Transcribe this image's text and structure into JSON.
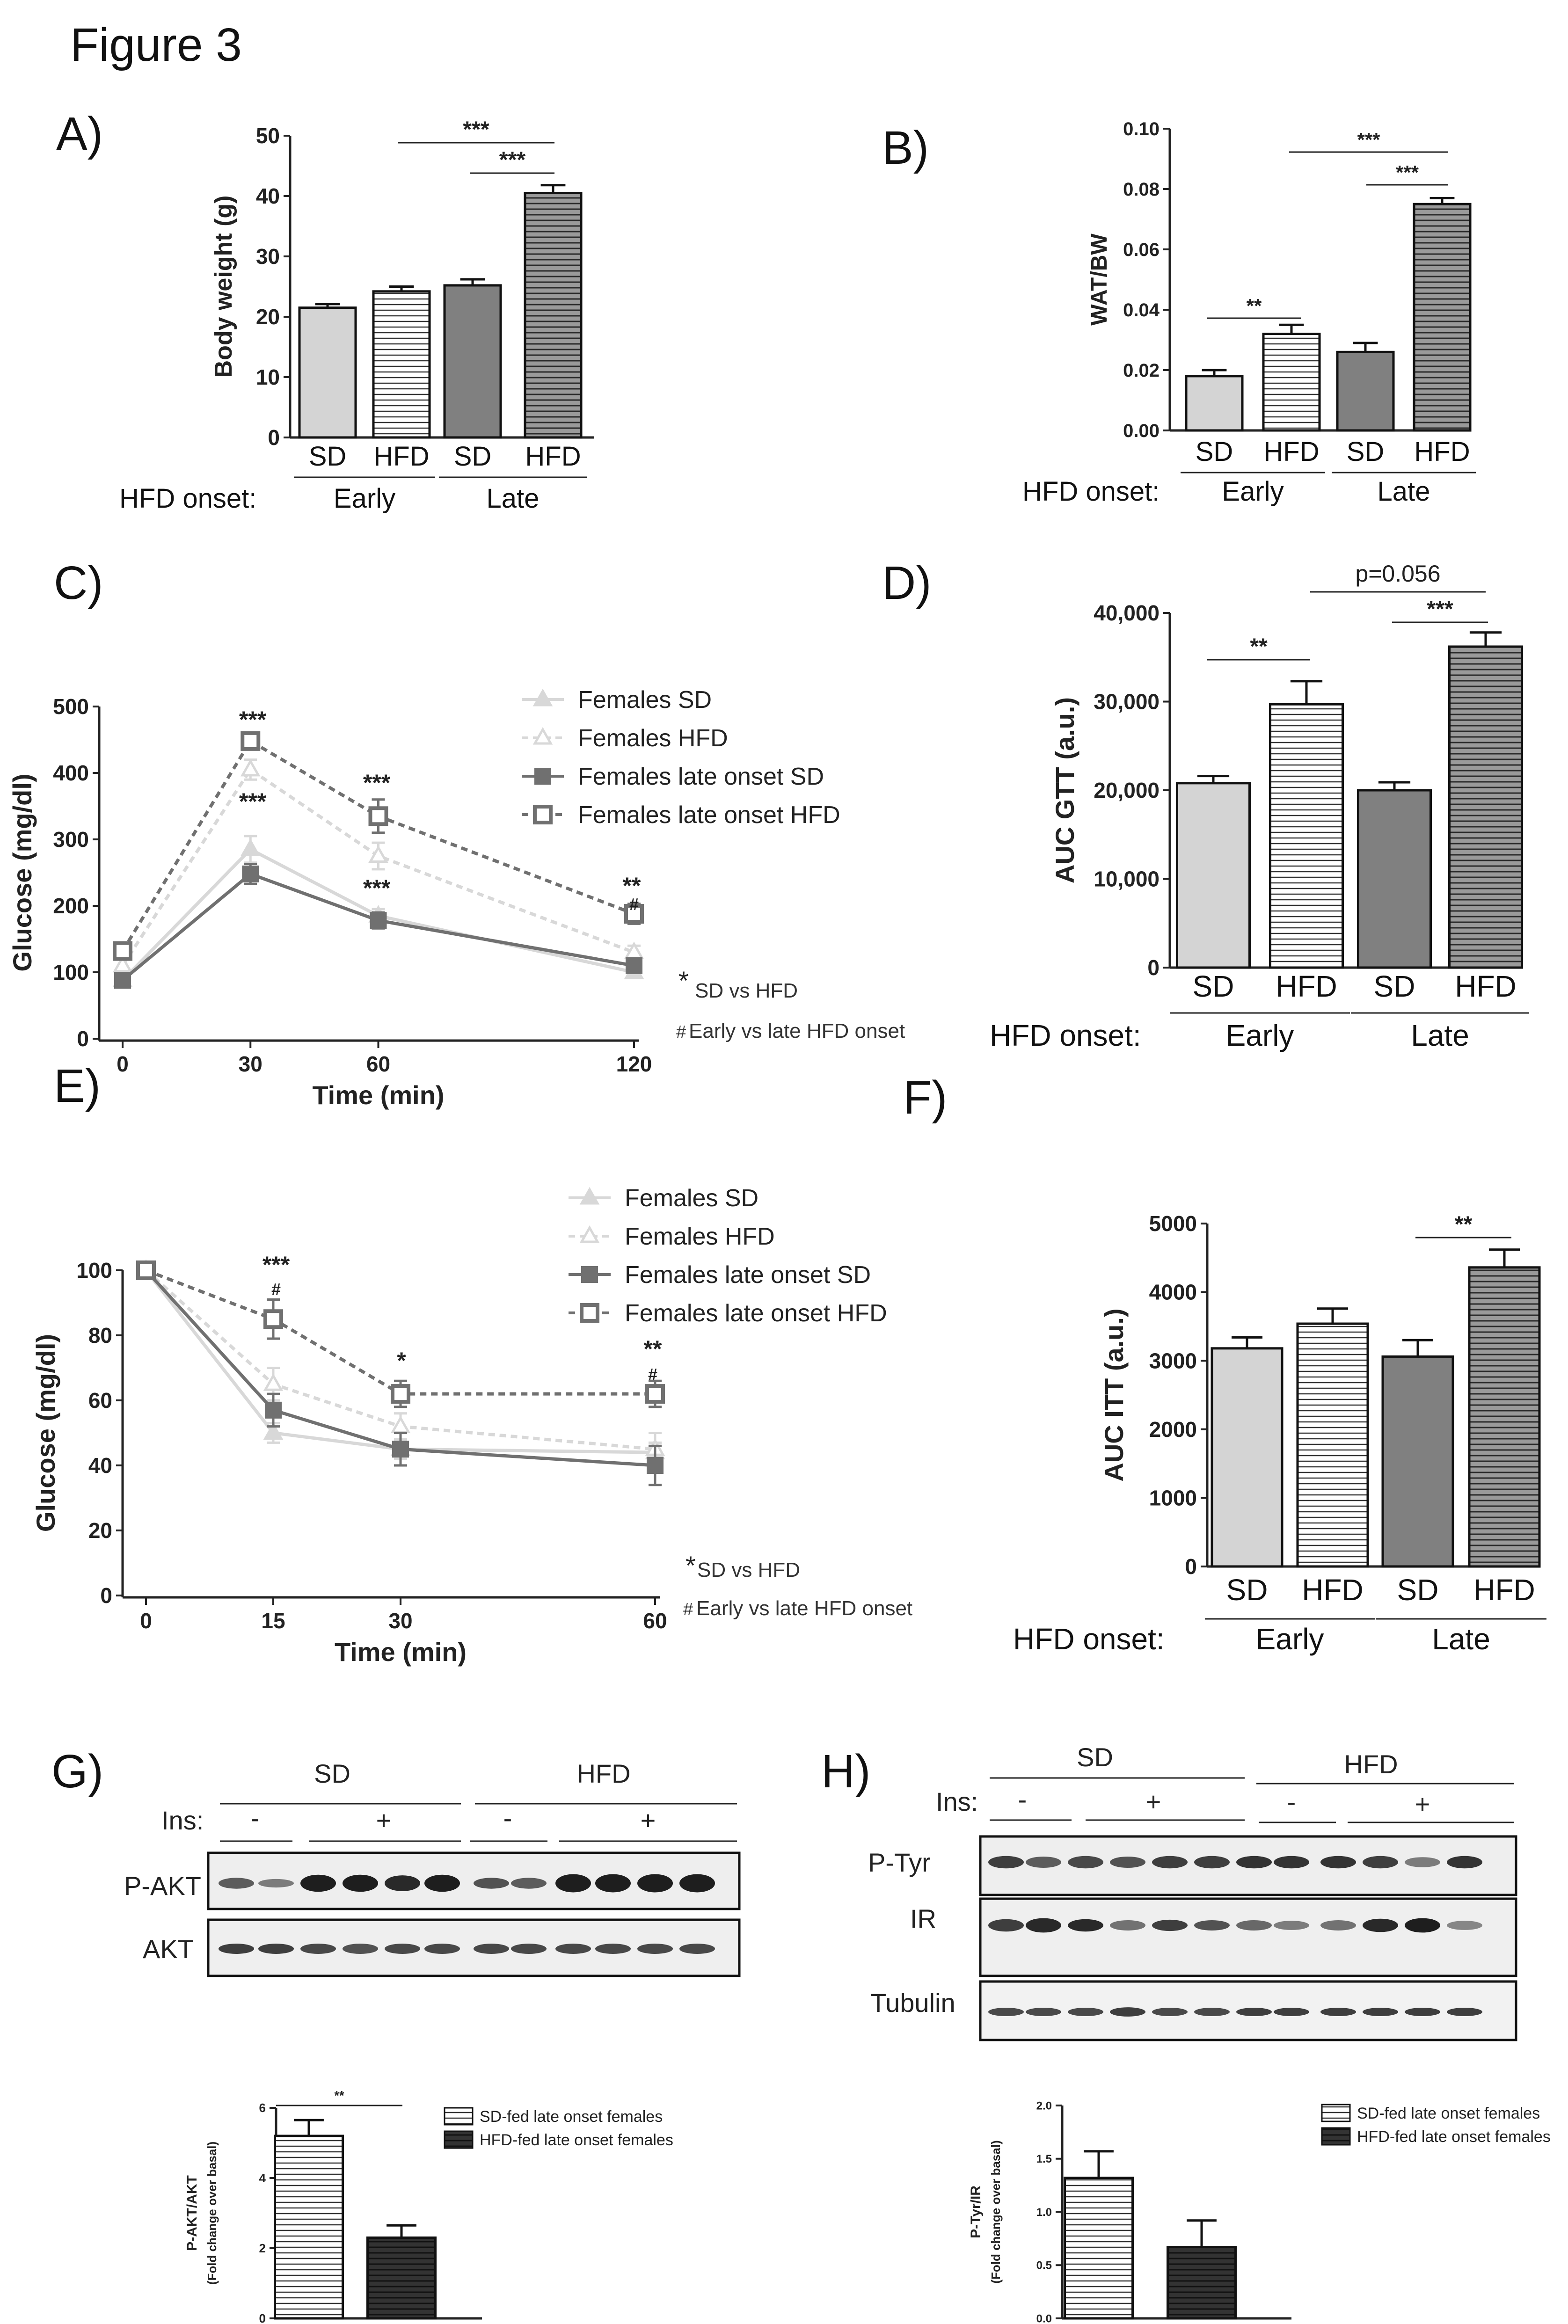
{
  "figure_title": "Figure 3",
  "colors": {
    "sd_early": "#d4d4d4",
    "sd_late": "#808080",
    "hfd_late": "#9a9a9a",
    "line_light": "#d8d8d8",
    "line_dark": "#707070",
    "blot_bg": "#f0f0f0",
    "band": "#1e1e1e"
  },
  "panels": {
    "A": {
      "letter": "A)",
      "onset_label": "HFD onset:",
      "groups": [
        "Early",
        "Late"
      ]
    },
    "B": {
      "letter": "B)",
      "onset_label": "HFD onset:",
      "groups": [
        "Early",
        "Late"
      ]
    },
    "C": {
      "letter": "C)",
      "footnote_star": "*",
      "footnote1": "SD vs HFD",
      "footnote_hash": "#",
      "footnote2": "Early vs late HFD onset"
    },
    "D": {
      "letter": "D)",
      "onset_label": "HFD onset:",
      "groups": [
        "Early",
        "Late"
      ]
    },
    "E": {
      "letter": "E)",
      "footnote_star": "*",
      "footnote1": "SD vs HFD",
      "footnote_hash": "#",
      "footnote2": "Early vs late HFD onset"
    },
    "F": {
      "letter": "F)",
      "onset_label": "HFD onset:",
      "groups": [
        "Early",
        "Late"
      ]
    },
    "G": {
      "letter": "G)",
      "group_sd": "SD",
      "group_hfd": "HFD",
      "ins_label": "Ins:",
      "ins_minus": "-",
      "ins_plus": "+",
      "blots": [
        "P-AKT",
        "AKT"
      ]
    },
    "H": {
      "letter": "H)",
      "group_sd": "SD",
      "group_hfd": "HFD",
      "ins_label": "Ins:",
      "ins_minus": "-",
      "ins_plus": "+",
      "blots": [
        "P-Tyr",
        "IR",
        "Tubulin"
      ]
    }
  },
  "chart_data": [
    {
      "id": "A",
      "type": "bar",
      "categories": [
        "SD",
        "HFD",
        "SD",
        "HFD"
      ],
      "values": [
        21.5,
        24.2,
        25.2,
        40.5
      ],
      "errors": [
        0.6,
        0.8,
        1.0,
        1.3
      ],
      "ylabel": "Body weight (g)",
      "ylim": [
        0,
        50
      ],
      "yticks": [
        "0",
        "10",
        "20",
        "30",
        "40",
        "50"
      ],
      "significance": [
        {
          "label": "***"
        },
        {
          "label": "***"
        }
      ]
    },
    {
      "id": "B",
      "type": "bar",
      "categories": [
        "SD",
        "HFD",
        "SD",
        "HFD"
      ],
      "values": [
        0.018,
        0.032,
        0.026,
        0.075
      ],
      "errors": [
        0.002,
        0.003,
        0.003,
        0.002
      ],
      "ylabel": "WAT/BW",
      "ylim": [
        0,
        0.1
      ],
      "yticks": [
        "0.00",
        "0.02",
        "0.04",
        "0.06",
        "0.08",
        "0.10"
      ],
      "significance": [
        {
          "label": "**"
        },
        {
          "label": "***"
        },
        {
          "label": "***"
        }
      ]
    },
    {
      "id": "C",
      "type": "line",
      "xlabel": "Time (min)",
      "ylabel": "Glucose (mg/dl)",
      "x": [
        0,
        30,
        60,
        120
      ],
      "xticks": [
        "0",
        "30",
        "60",
        "120"
      ],
      "ylim": [
        0,
        500
      ],
      "yticks": [
        "0",
        "100",
        "200",
        "300",
        "400",
        "500"
      ],
      "series": [
        {
          "name": "Females SD",
          "values": [
            88,
            285,
            185,
            100
          ],
          "errors": [
            8,
            20,
            10,
            8
          ]
        },
        {
          "name": "Females HFD",
          "values": [
            110,
            405,
            275,
            130
          ],
          "errors": [
            10,
            15,
            20,
            10
          ]
        },
        {
          "name": "Females late onset SD",
          "values": [
            88,
            248,
            178,
            110
          ],
          "errors": [
            6,
            15,
            12,
            8
          ]
        },
        {
          "name": "Females late onset HFD",
          "values": [
            132,
            448,
            335,
            188
          ],
          "errors": [
            8,
            12,
            25,
            15
          ]
        }
      ],
      "annotations": [
        "***",
        "***",
        "***",
        "***",
        "**",
        "#"
      ]
    },
    {
      "id": "D",
      "type": "bar",
      "categories": [
        "SD",
        "HFD",
        "SD",
        "HFD"
      ],
      "values": [
        20800,
        29700,
        20000,
        36200
      ],
      "errors": [
        800,
        2600,
        900,
        1600
      ],
      "ylabel": "AUC GTT  (a.u.)",
      "ylim": [
        0,
        40000
      ],
      "yticks": [
        "0",
        "10,000",
        "20,000",
        "30,000",
        "40,000"
      ],
      "significance": [
        {
          "label": "**"
        },
        {
          "label": "p=0.056"
        },
        {
          "label": "***"
        }
      ]
    },
    {
      "id": "E",
      "type": "line",
      "xlabel": "Time (min)",
      "ylabel": "Glucose (mg/dl)",
      "x": [
        0,
        15,
        30,
        60
      ],
      "xticks": [
        "0",
        "15",
        "30",
        "60"
      ],
      "ylim": [
        0,
        100
      ],
      "yticks": [
        "0",
        "20",
        "40",
        "60",
        "80",
        "100"
      ],
      "series": [
        {
          "name": "Females SD",
          "values": [
            100,
            50,
            45,
            44
          ],
          "errors": [
            0,
            3,
            3,
            3
          ]
        },
        {
          "name": "Females HFD",
          "values": [
            100,
            65,
            52,
            45
          ],
          "errors": [
            0,
            5,
            4,
            5
          ]
        },
        {
          "name": "Females late onset SD",
          "values": [
            100,
            57,
            45,
            40
          ],
          "errors": [
            0,
            5,
            5,
            6
          ]
        },
        {
          "name": "Females late onset HFD",
          "values": [
            100,
            85,
            62,
            62
          ],
          "errors": [
            0,
            6,
            4,
            4
          ]
        }
      ],
      "annotations": [
        "***",
        "#",
        "*",
        "**",
        "#"
      ]
    },
    {
      "id": "F",
      "type": "bar",
      "categories": [
        "SD",
        "HFD",
        "SD",
        "HFD"
      ],
      "values": [
        3180,
        3540,
        3060,
        4360
      ],
      "errors": [
        160,
        220,
        240,
        260
      ],
      "ylabel": "AUC ITT  (a.u.)",
      "ylim": [
        0,
        5000
      ],
      "yticks": [
        "0",
        "1000",
        "2000",
        "3000",
        "4000",
        "5000"
      ],
      "significance": [
        {
          "label": "**"
        }
      ]
    },
    {
      "id": "G",
      "type": "bar",
      "categories": [
        "SD-fed late onset females",
        "HFD-fed late onset females"
      ],
      "values": [
        5.2,
        2.3
      ],
      "errors": [
        0.45,
        0.35
      ],
      "ylabel": "P-AKT/AKT",
      "ylabel2": "(Fold change over basal)",
      "ylim": [
        0,
        6
      ],
      "yticks": [
        "0",
        "2",
        "4",
        "6"
      ],
      "legend": [
        "SD-fed late onset females",
        "HFD-fed late onset females"
      ],
      "significance": [
        {
          "label": "**"
        }
      ]
    },
    {
      "id": "H",
      "type": "bar",
      "categories": [
        "SD-fed late onset females",
        "HFD-fed late onset females"
      ],
      "values": [
        1.32,
        0.67
      ],
      "errors": [
        0.25,
        0.25
      ],
      "ylabel": "P-Tyr/IR",
      "ylabel2": "(Fold change over basal)",
      "ylim": [
        0,
        2
      ],
      "yticks": [
        "0.0",
        "0.5",
        "1.0",
        "1.5",
        "2.0"
      ],
      "legend": [
        "SD-fed late onset females",
        "HFD-fed late onset females"
      ]
    }
  ]
}
